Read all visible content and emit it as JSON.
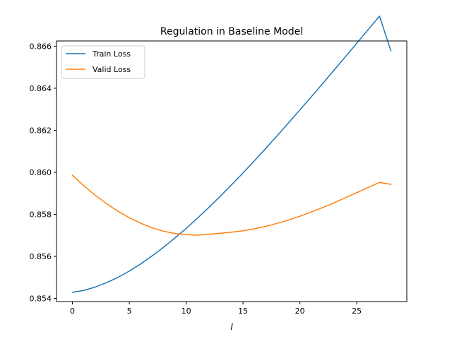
{
  "chart_data": {
    "type": "line",
    "title": "Regulation in Baseline Model",
    "xlabel": "l",
    "ylabel": "",
    "xlim": [
      -1.4,
      29.4
    ],
    "ylim": [
      0.85385,
      0.86625
    ],
    "xticks": [
      0,
      5,
      10,
      15,
      20,
      25
    ],
    "yticks": [
      0.854,
      0.856,
      0.858,
      0.86,
      0.862,
      0.864,
      0.866
    ],
    "ytick_labels": [
      "0.854",
      "0.856",
      "0.858",
      "0.860",
      "0.862",
      "0.864",
      "0.866"
    ],
    "legend_position": "top-left",
    "grid": false,
    "x": [
      0,
      1,
      2,
      3,
      4,
      5,
      6,
      7,
      8,
      9,
      10,
      11,
      12,
      13,
      14,
      15,
      16,
      17,
      18,
      19,
      20,
      21,
      22,
      23,
      24,
      25,
      26,
      27,
      28
    ],
    "series": [
      {
        "name": "Train Loss",
        "color": "#1f77b4",
        "values": [
          0.85429,
          0.85438,
          0.85454,
          0.85475,
          0.855,
          0.8553,
          0.85564,
          0.85602,
          0.85643,
          0.85687,
          0.85733,
          0.85782,
          0.85833,
          0.85886,
          0.85941,
          0.85997,
          0.86055,
          0.86114,
          0.86174,
          0.86235,
          0.86297,
          0.86359,
          0.86422,
          0.86486,
          0.8655,
          0.86614,
          0.86679,
          0.86743,
          0.86578
        ]
      },
      {
        "name": "Valid Loss",
        "color": "#ff7f0e",
        "values": [
          0.85986,
          0.85936,
          0.85891,
          0.85851,
          0.85815,
          0.85784,
          0.85758,
          0.85736,
          0.8572,
          0.85709,
          0.85703,
          0.85701,
          0.85705,
          0.8571,
          0.85715,
          0.85722,
          0.85731,
          0.85743,
          0.85757,
          0.85773,
          0.85791,
          0.85811,
          0.85832,
          0.85855,
          0.85879,
          0.85903,
          0.85928,
          0.85952,
          0.85943
        ]
      }
    ]
  }
}
